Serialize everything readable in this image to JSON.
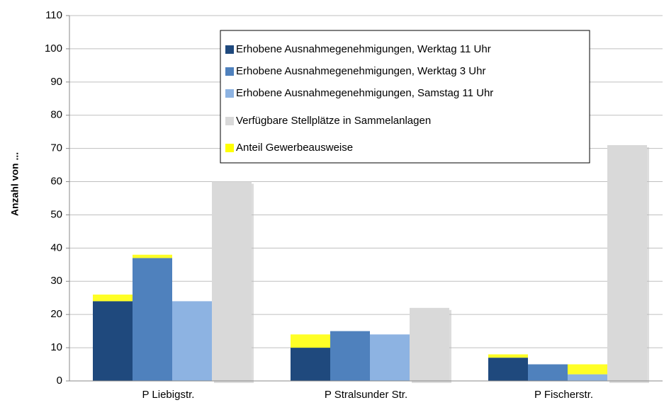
{
  "chart_data": {
    "type": "bar",
    "y_label": "Anzahl von ...",
    "categories": [
      "P Liebigstr.",
      "P Stralsunder Str.",
      "P Fischerstr."
    ],
    "series": [
      {
        "name": "Erhobene Ausnahmegenehmigungen, Werktag 11 Uhr",
        "color": "#1f497d",
        "values": [
          24,
          10,
          7
        ]
      },
      {
        "name": "Erhobene Ausnahmegenehmigungen, Werktag 3 Uhr",
        "color": "#4f81bd",
        "values": [
          37,
          15,
          5
        ]
      },
      {
        "name": "Erhobene Ausnahmegenehmigungen, Samstag 11 Uhr",
        "color": "#8db3e2",
        "values": [
          24,
          14,
          2
        ]
      },
      {
        "name": "Verfügbare Stellplätze in Sammelanlagen",
        "color": "#d9d9d9",
        "values": [
          60,
          22,
          71
        ]
      },
      {
        "name": "Anteil Gewerbeausweise",
        "color": "#ffff00",
        "values": [
          [
            2,
            1,
            0
          ],
          [
            4,
            0,
            0
          ],
          [
            1,
            0,
            3
          ]
        ]
      }
    ],
    "ylim": [
      0,
      110
    ],
    "yticks": [
      0,
      10,
      20,
      30,
      40,
      50,
      60,
      70,
      80,
      90,
      100,
      110
    ],
    "grid": true
  }
}
